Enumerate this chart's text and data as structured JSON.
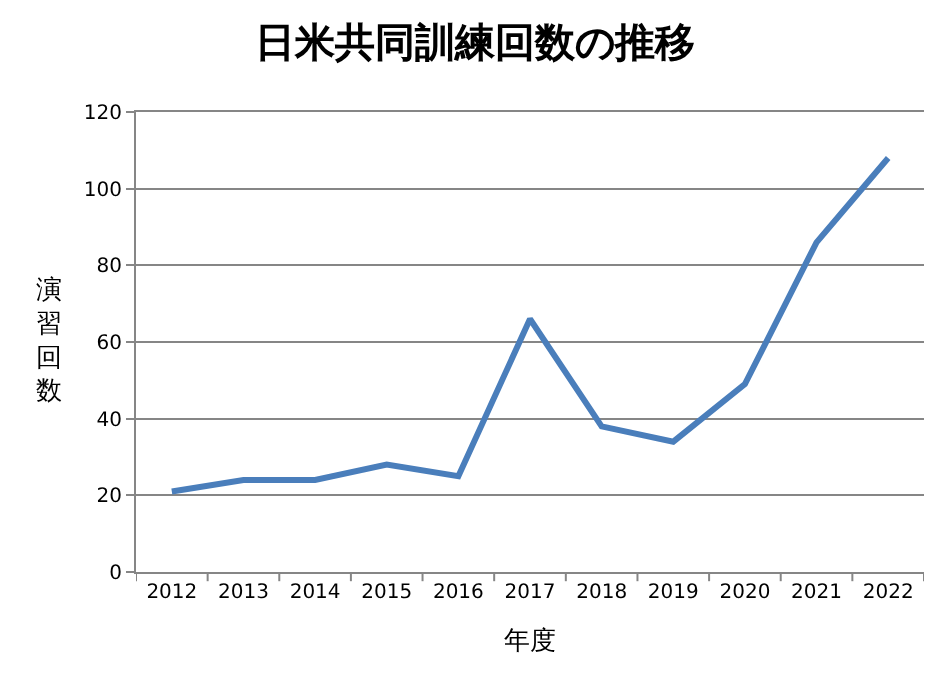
{
  "chart_data": {
    "type": "line",
    "title": "日米共同訓練回数の推移",
    "xlabel": "年度",
    "ylabel": "演習回数",
    "categories": [
      "2012",
      "2013",
      "2014",
      "2015",
      "2016",
      "2017",
      "2018",
      "2019",
      "2020",
      "2021",
      "2022"
    ],
    "series": [
      {
        "color": "#4a7ebb",
        "values": [
          21,
          24,
          24,
          28,
          25,
          66,
          38,
          34,
          49,
          86,
          108
        ]
      }
    ],
    "ylim": [
      0,
      120
    ],
    "yticks": [
      0,
      20,
      40,
      60,
      80,
      100,
      120
    ],
    "grid": "y",
    "marker": "none",
    "line_style": "solid"
  }
}
